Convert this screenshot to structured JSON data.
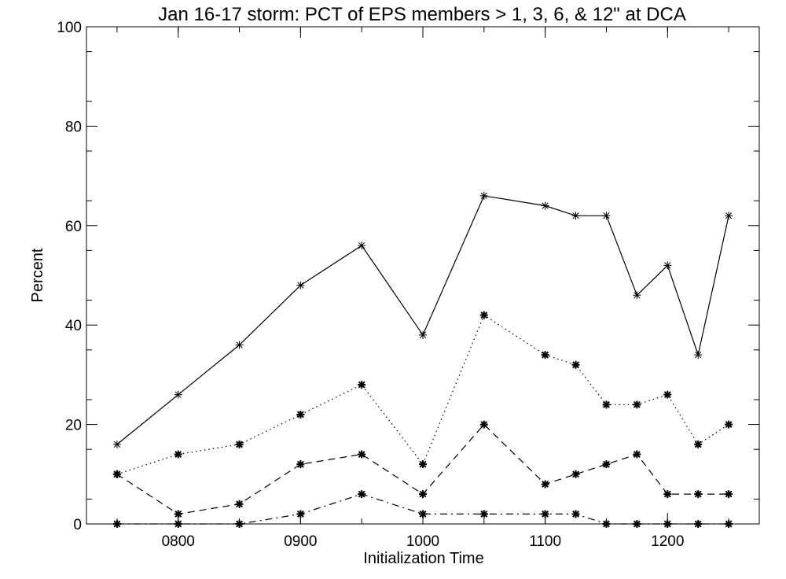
{
  "chart_data": {
    "type": "line",
    "title": "Jan 16-17 storm: PCT of EPS members > 1, 3, 6, & 12\" at DCA",
    "xlabel": "Initialization Time",
    "ylabel": "Percent",
    "xlim": [
      725,
      1275
    ],
    "ylim": [
      0,
      100
    ],
    "x_ticks": [
      {
        "value": 800,
        "label": "0800"
      },
      {
        "value": 900,
        "label": "0900"
      },
      {
        "value": 1000,
        "label": "1000"
      },
      {
        "value": 1100,
        "label": "1100"
      },
      {
        "value": 1200,
        "label": "1200"
      }
    ],
    "y_ticks": [
      {
        "value": 0,
        "label": "0"
      },
      {
        "value": 20,
        "label": "20"
      },
      {
        "value": 40,
        "label": "40"
      },
      {
        "value": 60,
        "label": "60"
      },
      {
        "value": 80,
        "label": "80"
      },
      {
        "value": 100,
        "label": "100"
      }
    ],
    "x": [
      750,
      800,
      850,
      900,
      950,
      1000,
      1050,
      1100,
      1125,
      1150,
      1175,
      1200,
      1225,
      1250
    ],
    "series": [
      {
        "style": "solid",
        "marker": "asterisk-thin",
        "values": [
          16,
          26,
          36,
          48,
          56,
          38,
          66,
          64,
          62,
          62,
          46,
          52,
          34,
          62
        ]
      },
      {
        "style": "dotted",
        "marker": "asterisk-bold",
        "values": [
          10,
          14,
          16,
          22,
          28,
          12,
          42,
          34,
          32,
          24,
          24,
          26,
          16,
          20
        ]
      },
      {
        "style": "dashed",
        "marker": "asterisk-bold",
        "values": [
          10,
          2,
          4,
          12,
          14,
          6,
          20,
          8,
          10,
          12,
          14,
          6,
          6,
          6
        ]
      },
      {
        "style": "dash-dot",
        "marker": "asterisk-bold",
        "values": [
          0,
          0,
          0,
          2,
          6,
          2,
          2,
          2,
          2,
          0,
          0,
          0,
          0,
          0
        ]
      }
    ],
    "grid": false,
    "legend": "none"
  }
}
